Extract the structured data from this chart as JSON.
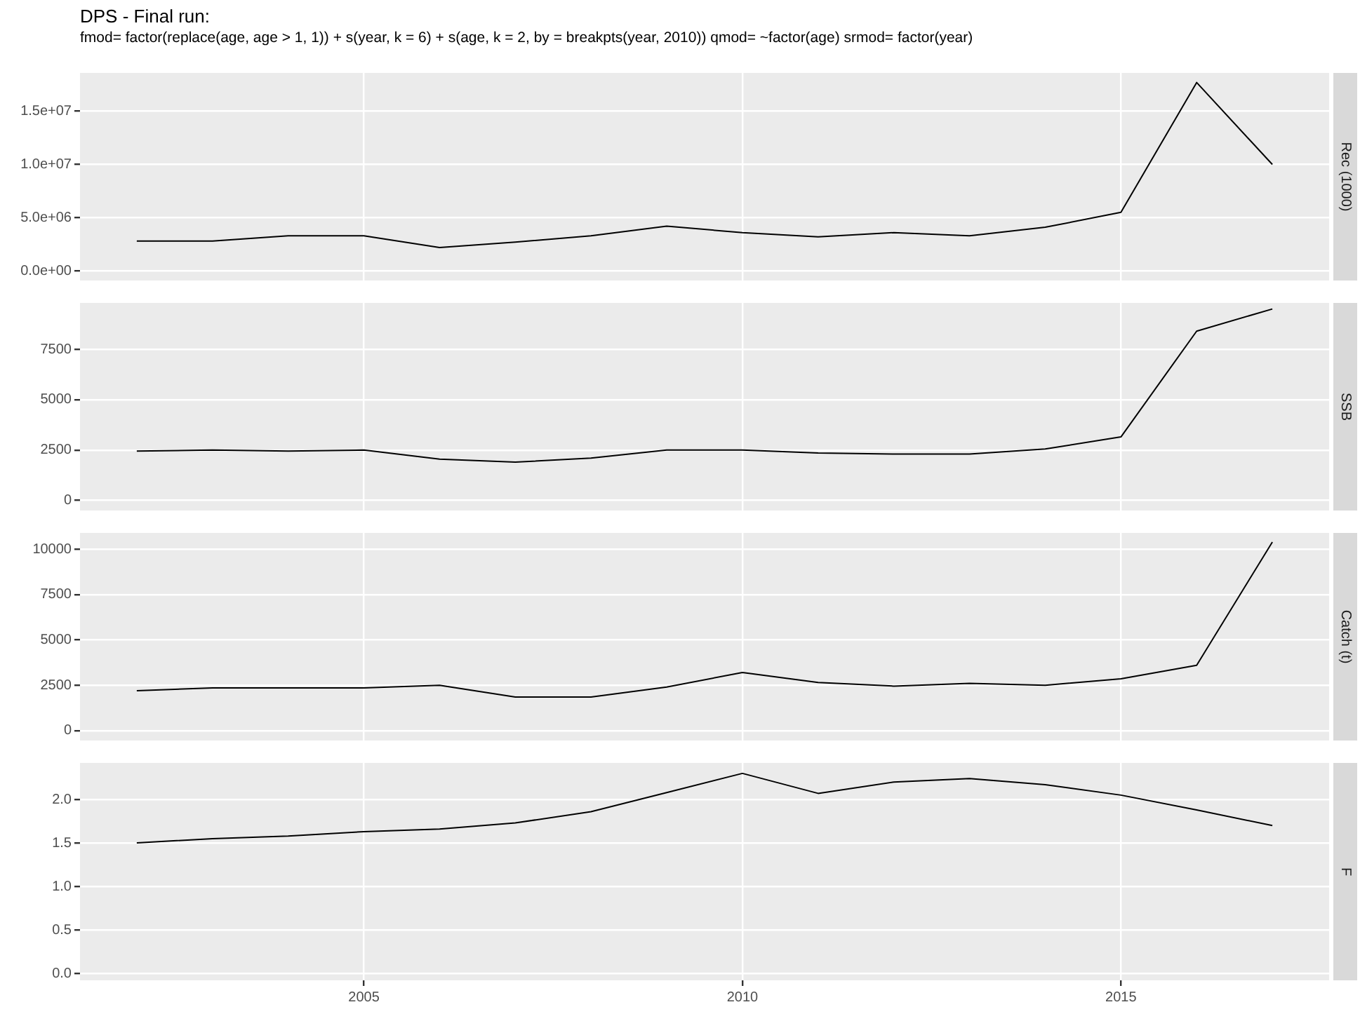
{
  "chart_data": [
    {
      "type": "line",
      "title": "DPS - Final run:",
      "subtitle": "fmod= factor(replace(age, age > 1, 1)) + s(year, k = 6) + s(age, k = 2, by = breakpts(year, 2010)) qmod= ~factor(age) srmod= factor(year)",
      "ylabel": "Rec (1000)",
      "x": [
        2002,
        2003,
        2004,
        2005,
        2006,
        2007,
        2008,
        2009,
        2010,
        2011,
        2012,
        2013,
        2014,
        2015,
        2016,
        2017
      ],
      "series": [
        {
          "color": "#000000",
          "values": [
            2800000,
            2800000,
            3300000,
            3300000,
            2200000,
            2700000,
            3300000,
            4200000,
            3600000,
            3200000,
            3600000,
            3300000,
            4100000,
            5500000,
            17700000,
            10000000
          ]
        }
      ],
      "xlim": [
        2001.25,
        2017.75
      ],
      "xticks": [
        2005,
        2010,
        2015
      ],
      "ylim": [
        -900000,
        18600000
      ],
      "yticks": [
        {
          "value": 0,
          "label": "0.0e+00"
        },
        {
          "value": 5000000,
          "label": "5.0e+06"
        },
        {
          "value": 10000000,
          "label": "1.0e+07"
        },
        {
          "value": 15000000,
          "label": "1.5e+07"
        }
      ],
      "grid": true,
      "tick_labels": "y"
    },
    {
      "type": "line",
      "ylabel": "SSB",
      "x": [
        2002,
        2003,
        2004,
        2005,
        2006,
        2007,
        2008,
        2009,
        2010,
        2011,
        2012,
        2013,
        2014,
        2015,
        2016,
        2017
      ],
      "series": [
        {
          "color": "#000000",
          "values": [
            2450,
            2500,
            2450,
            2500,
            2050,
            1900,
            2100,
            2500,
            2500,
            2350,
            2300,
            2300,
            2550,
            3150,
            8400,
            9500
          ]
        }
      ],
      "xlim": [
        2001.25,
        2017.75
      ],
      "xticks": [
        2005,
        2010,
        2015
      ],
      "ylim": [
        -500,
        9800
      ],
      "yticks": [
        0,
        2500,
        5000,
        7500
      ],
      "grid": true,
      "tick_labels": "y"
    },
    {
      "type": "line",
      "ylabel": "Catch (t)",
      "x": [
        2002,
        2003,
        2004,
        2005,
        2006,
        2007,
        2008,
        2009,
        2010,
        2011,
        2012,
        2013,
        2014,
        2015,
        2016,
        2017
      ],
      "series": [
        {
          "color": "#000000",
          "values": [
            2200,
            2350,
            2350,
            2350,
            2500,
            1850,
            1850,
            2400,
            3200,
            2650,
            2450,
            2600,
            2500,
            2850,
            3600,
            10400
          ]
        }
      ],
      "xlim": [
        2001.25,
        2017.75
      ],
      "xticks": [
        2005,
        2010,
        2015
      ],
      "ylim": [
        -550,
        10900
      ],
      "yticks": [
        0,
        2500,
        5000,
        7500,
        10000
      ],
      "grid": true,
      "tick_labels": "y"
    },
    {
      "type": "line",
      "ylabel": "F",
      "x": [
        2002,
        2003,
        2004,
        2005,
        2006,
        2007,
        2008,
        2009,
        2010,
        2011,
        2012,
        2013,
        2014,
        2015,
        2016,
        2017
      ],
      "series": [
        {
          "color": "#000000",
          "values": [
            1.5,
            1.55,
            1.58,
            1.63,
            1.66,
            1.73,
            1.86,
            2.08,
            2.3,
            2.07,
            2.2,
            2.24,
            2.17,
            2.05,
            1.88,
            1.7
          ]
        }
      ],
      "xlim": [
        2001.25,
        2017.75
      ],
      "xticks": [
        2005,
        2010,
        2015
      ],
      "ylim": [
        -0.08,
        2.42
      ],
      "yticks": [
        {
          "value": 0,
          "label": "0.0"
        },
        {
          "value": 0.5,
          "label": "0.5"
        },
        {
          "value": 1,
          "label": "1.0"
        },
        {
          "value": 1.5,
          "label": "1.5"
        },
        {
          "value": 2,
          "label": "2.0"
        }
      ],
      "grid": true
    }
  ]
}
